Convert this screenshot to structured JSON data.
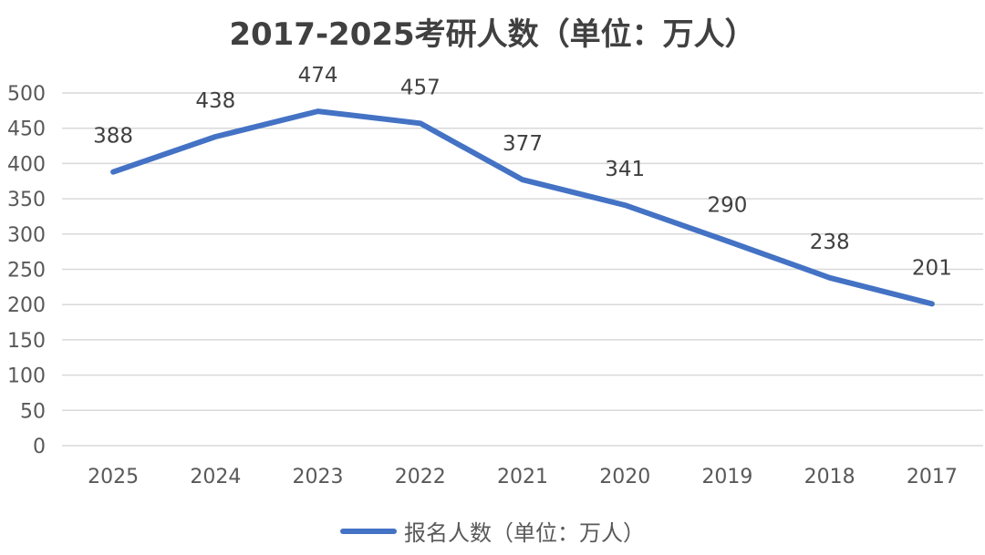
{
  "chart_data": {
    "type": "line",
    "title": "2017-2025考研人数（单位：万人）",
    "categories": [
      "2025",
      "2024",
      "2023",
      "2022",
      "2021",
      "2020",
      "2019",
      "2018",
      "2017"
    ],
    "series": [
      {
        "name": "报名人数（单位：万人）",
        "values": [
          388,
          438,
          474,
          457,
          377,
          341,
          290,
          238,
          201
        ],
        "color": "#4472C4"
      }
    ],
    "ylim": [
      0,
      500
    ],
    "yticks": [
      0,
      50,
      100,
      150,
      200,
      250,
      300,
      350,
      400,
      450,
      500
    ],
    "grid": true,
    "legend_position": "bottom",
    "data_labels": true
  },
  "colors": {
    "grid": "#d9d9d9",
    "axis_text": "#595959",
    "data_label": "#404040"
  }
}
